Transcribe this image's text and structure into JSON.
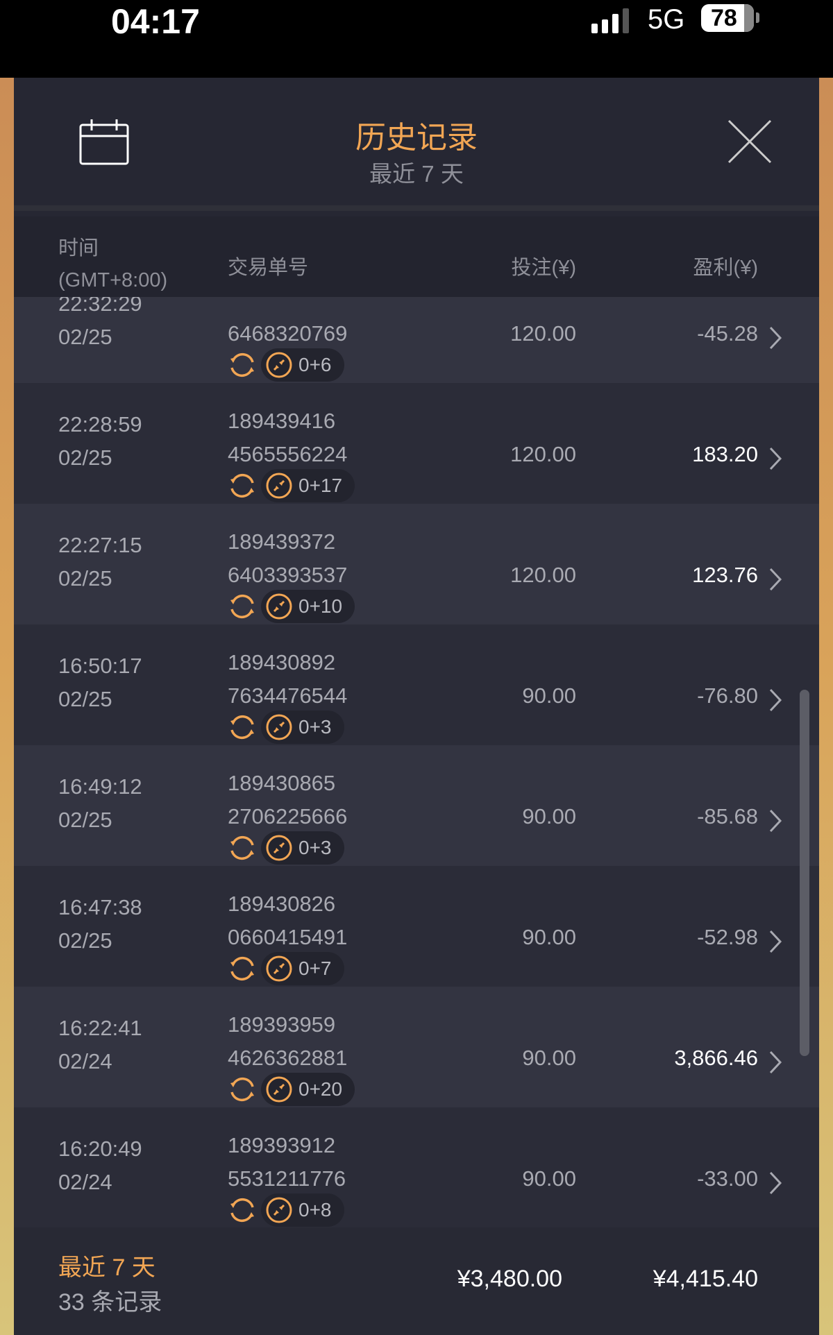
{
  "status_bar": {
    "time": "04:17",
    "network": "5G",
    "battery": "78"
  },
  "header": {
    "title": "历史记录",
    "subtitle": "最近 7 天",
    "calendar_icon": "calendar-icon",
    "close_icon": "close-icon"
  },
  "columns": {
    "time": "时间",
    "timezone": "(GMT+8:00)",
    "order_id": "交易单号",
    "stake": "投注(¥)",
    "profit": "盈利(¥)"
  },
  "colors": {
    "accent": "#f2a654",
    "background": "#262733"
  },
  "rows": [
    {
      "time": "22:32:29",
      "date": "02/25",
      "id1": "",
      "id2": "6468320769",
      "stake": "120.00",
      "profit": "-45.28",
      "badge": "0+6",
      "positive": false
    },
    {
      "time": "22:28:59",
      "date": "02/25",
      "id1": "189439416",
      "id2": "4565556224",
      "stake": "120.00",
      "profit": "183.20",
      "badge": "0+17",
      "positive": true
    },
    {
      "time": "22:27:15",
      "date": "02/25",
      "id1": "189439372",
      "id2": "6403393537",
      "stake": "120.00",
      "profit": "123.76",
      "badge": "0+10",
      "positive": true
    },
    {
      "time": "16:50:17",
      "date": "02/25",
      "id1": "189430892",
      "id2": "7634476544",
      "stake": "90.00",
      "profit": "-76.80",
      "badge": "0+3",
      "positive": false
    },
    {
      "time": "16:49:12",
      "date": "02/25",
      "id1": "189430865",
      "id2": "2706225666",
      "stake": "90.00",
      "profit": "-85.68",
      "badge": "0+3",
      "positive": false
    },
    {
      "time": "16:47:38",
      "date": "02/25",
      "id1": "189430826",
      "id2": "0660415491",
      "stake": "90.00",
      "profit": "-52.98",
      "badge": "0+7",
      "positive": false
    },
    {
      "time": "16:22:41",
      "date": "02/24",
      "id1": "189393959",
      "id2": "4626362881",
      "stake": "90.00",
      "profit": "3,866.46",
      "badge": "0+20",
      "positive": true
    },
    {
      "time": "16:20:49",
      "date": "02/24",
      "id1": "189393912",
      "id2": "5531211776",
      "stake": "90.00",
      "profit": "-33.00",
      "badge": "0+8",
      "positive": false
    }
  ],
  "footer": {
    "period": "最近 7 天",
    "count": "33 条记录",
    "total_stake": "¥3,480.00",
    "total_profit": "¥4,415.40"
  }
}
